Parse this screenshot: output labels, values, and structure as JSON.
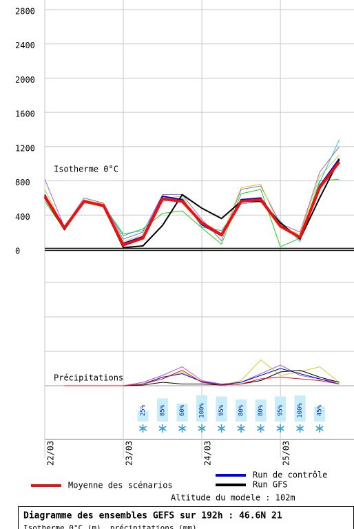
{
  "chart_data": [
    {
      "type": "line",
      "title": "Diagramme des ensembles GEFS sur 192h : 46.6N 21",
      "subtitle": "Isotherme 0°C (m), précipitations (mm)",
      "annotations": [
        "Isotherme 0°C",
        "Altitude du modele : 102m"
      ],
      "x": [
        0,
        6,
        12,
        18,
        24,
        30,
        36,
        42,
        48,
        54,
        60,
        66,
        72,
        78,
        84,
        90
      ],
      "xlim": [
        0,
        94.5
      ],
      "xticks": [
        {
          "value": 0,
          "label": "22/03"
        },
        {
          "value": 24,
          "label": "23/03"
        },
        {
          "value": 48,
          "label": "24/03"
        },
        {
          "value": 72,
          "label": "25/03"
        }
      ],
      "ylim": [
        0,
        2800
      ],
      "yticks": [
        0,
        400,
        800,
        1200,
        1600,
        2000,
        2400,
        2800
      ],
      "grid": true,
      "series": [
        {
          "color": "#22cc22",
          "values": [
            560,
            230,
            550,
            520,
            160,
            240,
            420,
            450,
            250,
            60,
            650,
            700,
            30,
            130,
            800,
            820
          ]
        },
        {
          "color": "#9966cc",
          "values": [
            820,
            260,
            600,
            540,
            120,
            200,
            640,
            640,
            350,
            100,
            700,
            740,
            300,
            200,
            900,
            1200
          ]
        },
        {
          "color": "#cccc33",
          "values": [
            700,
            240,
            580,
            530,
            90,
            170,
            600,
            620,
            280,
            150,
            720,
            760,
            250,
            180,
            850,
            1100
          ]
        },
        {
          "color": "#33bbbb",
          "values": [
            600,
            270,
            570,
            510,
            180,
            220,
            560,
            600,
            260,
            220,
            530,
            560,
            330,
            90,
            780,
            1280
          ]
        },
        {
          "name": "Run de contrôle",
          "color": "#0000dd",
          "values": [
            640,
            240,
            570,
            500,
            70,
            150,
            620,
            580,
            290,
            160,
            580,
            600,
            280,
            130,
            740,
            1060
          ]
        },
        {
          "name": "Run GFS",
          "color": "#000000",
          "values": [
            600,
            230,
            560,
            500,
            20,
            40,
            280,
            640,
            480,
            360,
            560,
            560,
            310,
            120,
            600,
            1050
          ]
        },
        {
          "name": "Moyenne des scénarios",
          "color": "#ee1111",
          "values": [
            620,
            250,
            560,
            510,
            50,
            130,
            590,
            560,
            310,
            170,
            560,
            580,
            270,
            140,
            720,
            1020
          ]
        }
      ]
    },
    {
      "type": "line",
      "annotations": [
        "Précipitations"
      ],
      "x": [
        0,
        6,
        12,
        18,
        24,
        30,
        36,
        42,
        48,
        54,
        60,
        66,
        72,
        78,
        84,
        90
      ],
      "xlim": [
        0,
        94.5
      ],
      "ylim": [
        0,
        4
      ],
      "series": [
        {
          "color": "#9966cc",
          "values": [
            null,
            0,
            0,
            0,
            0,
            0.1,
            0.3,
            0.55,
            0.15,
            0.05,
            0.1,
            0.35,
            0.6,
            0.3,
            0.2,
            0.1
          ]
        },
        {
          "color": "#cccc33",
          "values": [
            null,
            0,
            0,
            0,
            0,
            0.05,
            0.2,
            0.4,
            0.1,
            0.02,
            0.15,
            0.75,
            0.3,
            0.4,
            0.55,
            0.1
          ]
        },
        {
          "color": "#0000dd",
          "values": [
            null,
            0,
            0,
            0,
            0,
            0.05,
            0.25,
            0.35,
            0.12,
            0.03,
            0.1,
            0.3,
            0.5,
            0.35,
            0.2,
            0.05
          ]
        },
        {
          "color": "#000000",
          "values": [
            null,
            0,
            0,
            0,
            0,
            0.02,
            0.1,
            0.05,
            0.05,
            0.02,
            0.05,
            0.15,
            0.4,
            0.45,
            0.25,
            0.1
          ]
        },
        {
          "color": "#ee1111",
          "values": [
            null,
            0,
            0,
            0,
            0,
            0.05,
            0.2,
            0.45,
            0.1,
            0.02,
            0.05,
            0.2,
            0.25,
            0.2,
            0.15,
            0.05
          ]
        }
      ],
      "snow_probability": {
        "x": [
          30,
          36,
          42,
          48,
          54,
          60,
          66,
          72,
          78,
          84
        ],
        "values": [
          25,
          85,
          60,
          100,
          95,
          80,
          80,
          95,
          100,
          45
        ],
        "value_labels": [
          "25%",
          "85%",
          "60%",
          "100%",
          "95%",
          "80%",
          "80%",
          "95%",
          "100%",
          "45%"
        ],
        "color": "#c8ecf8"
      }
    }
  ]
}
